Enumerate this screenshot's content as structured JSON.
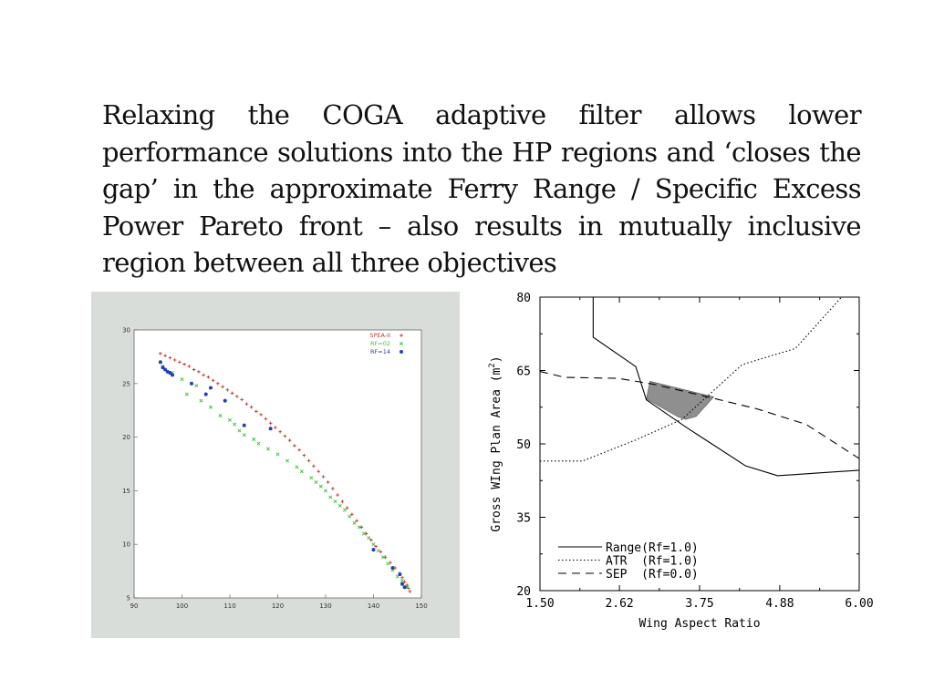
{
  "slide": {
    "text": "Relaxing the COGA adaptive filter allows lower performance solutions into the HP regions and ‘closes the gap’ in the approximate Ferry Range / Specific Excess Power Pareto front – also results in mutually inclusive region between all three objectives"
  },
  "chart_data": [
    {
      "type": "scatter",
      "title": "",
      "xlabel": "",
      "ylabel": "",
      "xlim": [
        90,
        150
      ],
      "ylim": [
        5,
        30
      ],
      "x_ticks": [
        "90",
        "100",
        "110",
        "120",
        "130",
        "140",
        "150"
      ],
      "y_ticks": [
        "5",
        "10",
        "15",
        "20",
        "25",
        "30"
      ],
      "legend_position": "top-right",
      "grid": false,
      "series": [
        {
          "name": "SPEA-II",
          "marker": "+",
          "color": "#c0392b",
          "x": [
            95.5,
            96.5,
            97.5,
            98.5,
            99.5,
            100.5,
            101.5,
            102.5,
            103.5,
            104.5,
            105.5,
            106.5,
            107.5,
            108.5,
            109.5,
            110.5,
            111.5,
            112.5,
            113.5,
            114.5,
            115.5,
            116.5,
            117.5,
            118.5,
            119.5,
            120.5,
            121.5,
            122.5,
            123.5,
            124.5,
            125.5,
            126.5,
            127.5,
            128.5,
            129.5,
            130.5,
            131.5,
            132.5,
            133.5,
            134.5,
            135.5,
            136.5,
            137.5,
            138.5,
            139.5,
            140.5,
            141.5,
            142.5,
            143.5,
            144.5,
            145.5,
            146.0,
            146.5,
            147.0,
            147.3,
            147.6
          ],
          "y": [
            27.8,
            27.6,
            27.4,
            27.2,
            27.0,
            26.8,
            26.6,
            26.3,
            26.1,
            25.8,
            25.6,
            25.3,
            25.0,
            24.7,
            24.4,
            24.1,
            23.8,
            23.5,
            23.1,
            22.8,
            22.4,
            22.1,
            21.7,
            21.3,
            20.9,
            20.5,
            20.1,
            19.7,
            19.2,
            18.8,
            18.3,
            17.8,
            17.3,
            16.8,
            16.3,
            15.8,
            15.2,
            14.6,
            14.0,
            13.4,
            12.8,
            12.2,
            11.6,
            11.0,
            10.4,
            9.8,
            9.3,
            8.8,
            8.3,
            7.8,
            7.3,
            6.9,
            6.5,
            6.2,
            5.9,
            5.6
          ]
        },
        {
          "name": "RF=02",
          "marker": "x",
          "color": "#3cc43c",
          "x": [
            96,
            98,
            100,
            101,
            103,
            104,
            106,
            108,
            110,
            111,
            112,
            113,
            115,
            116,
            118,
            120,
            122,
            124,
            125,
            127,
            128,
            129,
            130,
            131,
            132,
            133,
            134,
            135,
            136,
            137,
            138,
            139,
            140,
            141,
            142,
            143,
            144,
            145,
            146,
            147
          ],
          "y": [
            26.6,
            26.0,
            25.4,
            24.0,
            24.8,
            23.4,
            22.8,
            22.0,
            21.6,
            21.2,
            20.6,
            20.2,
            19.8,
            19.4,
            18.9,
            18.4,
            17.8,
            17.2,
            16.8,
            16.2,
            15.8,
            15.4,
            15.0,
            14.4,
            14.0,
            13.6,
            13.2,
            12.6,
            12.0,
            11.6,
            11.0,
            10.6,
            10.0,
            9.4,
            8.8,
            8.2,
            7.6,
            7.0,
            6.6,
            6.0
          ]
        },
        {
          "name": "RF=14",
          "marker": "*",
          "color": "#1d3fb8",
          "x": [
            95.5,
            96.0,
            96.5,
            97.0,
            97.5,
            98.0,
            102.0,
            105.0,
            106.0,
            109.0,
            113.0,
            118.5,
            140.0,
            144.0,
            145.5,
            146.0,
            146.5
          ],
          "y": [
            27.0,
            26.5,
            26.3,
            26.1,
            26.0,
            25.8,
            25.0,
            24.0,
            24.6,
            23.4,
            21.1,
            20.8,
            9.5,
            7.8,
            7.2,
            6.3,
            6.0
          ]
        }
      ]
    },
    {
      "type": "line",
      "title": "",
      "xlabel": "Wing Aspect Ratio",
      "ylabel": "Gross WIng Plan Area (m",
      "ylabel_superscript": "2",
      "ylabel_suffix": ")",
      "xlim": [
        1.5,
        6.0
      ],
      "ylim": [
        20,
        80
      ],
      "x_ticks": [
        "1.50",
        "2.62",
        "3.75",
        "4.88",
        "6.00"
      ],
      "y_ticks": [
        "20",
        "35",
        "50",
        "65",
        "80"
      ],
      "legend_position": "bottom-left",
      "grid": false,
      "series": [
        {
          "name": "Range(Rf=1.0)",
          "style": "solid",
          "x": [
            2.25,
            2.25,
            2.85,
            3.0,
            3.55,
            4.4,
            4.85,
            6.0
          ],
          "y": [
            80,
            71.8,
            65.8,
            59,
            53.5,
            45.5,
            43.5,
            44.6
          ]
        },
        {
          "name": "ATR  (Rf=1.0)",
          "style": "dotted",
          "x": [
            1.5,
            2.1,
            2.85,
            3.5,
            4.35,
            5.1,
            5.75
          ],
          "y": [
            46.5,
            46.5,
            50.8,
            55.0,
            66.2,
            69.5,
            80
          ]
        },
        {
          "name": "SEP  (Rf=0.0)",
          "style": "dashed",
          "x": [
            1.5,
            1.85,
            2.6,
            3.1,
            3.75,
            4.55,
            5.25,
            6.0
          ],
          "y": [
            64.8,
            63.6,
            63.4,
            62.2,
            60.0,
            57.2,
            54.0,
            47.0
          ]
        }
      ],
      "shaded_region": {
        "color": "#8f8f8f",
        "x": [
          3.05,
          3.95,
          3.7,
          3.55,
          3.45,
          3.0
        ],
        "y": [
          62.8,
          59.6,
          55.6,
          55.0,
          55.5,
          59.2
        ]
      }
    }
  ]
}
